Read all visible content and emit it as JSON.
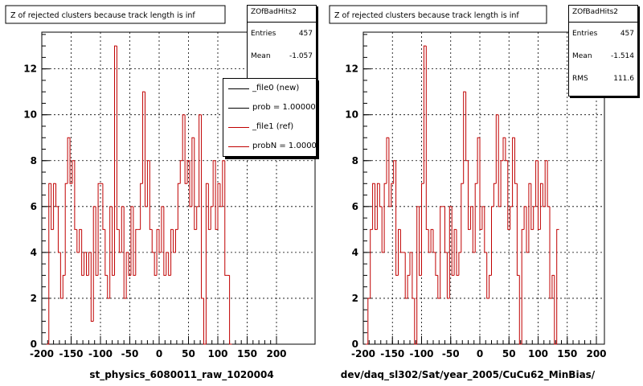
{
  "colors": {
    "hist": "#c00000",
    "axis": "#000000",
    "grid": "#000000",
    "legend_new": "#000000",
    "legend_ref": "#c00000"
  },
  "footer_text": "",
  "chart_data": [
    {
      "type": "histogram",
      "title": "Z of rejected clusters  because track length is inf",
      "xlabel": "st_physics_6080011_raw_1020004",
      "ylabel": "",
      "xlim": [
        -205,
        207
      ],
      "ylim": [
        0,
        13.6
      ],
      "xticks": [
        -200,
        -150,
        -100,
        -50,
        0,
        50,
        100,
        150,
        200
      ],
      "yticks": [
        0,
        2,
        4,
        6,
        8,
        10,
        12
      ],
      "grid": true,
      "bin_width": 4,
      "bin_start": -192,
      "values": [
        0,
        7,
        5,
        7,
        6,
        4,
        2,
        3,
        7,
        9,
        7,
        8,
        5,
        4,
        5,
        3,
        4,
        3,
        4,
        1,
        6,
        3,
        7,
        7,
        5,
        3,
        2,
        6,
        3,
        13,
        5,
        4,
        6,
        2,
        4,
        3,
        6,
        3,
        5,
        5,
        7,
        11,
        6,
        8,
        5,
        4,
        3,
        5,
        4,
        6,
        3,
        4,
        3,
        5,
        4,
        5,
        7,
        8,
        10,
        7,
        8,
        6,
        9,
        5,
        6,
        10,
        2,
        0,
        7,
        5,
        6,
        8,
        5,
        7,
        6,
        8,
        3,
        3,
        0
      ],
      "stats": {
        "name": "ZOfBadHits2",
        "entries_label": "Entries",
        "entries": "457",
        "mean_label": "Mean",
        "mean": "-1.057"
      },
      "legend": {
        "placement": "top-right",
        "entries": [
          {
            "label": "_file0 (new)",
            "color": "#000000"
          },
          {
            "label": "prob = 1.000000",
            "color": "#000000"
          },
          {
            "label": "_file1 (ref)",
            "color": "#c00000"
          },
          {
            "label": "probN = 1.000000",
            "color": "#c00000"
          }
        ]
      }
    },
    {
      "type": "histogram",
      "title": "Z of rejected clusters  because track length is inf",
      "xlabel": "dev/daq_sl302/Sat/year_2005/CuCu62_MinBias/",
      "ylabel": "",
      "xlim": [
        -205,
        207
      ],
      "ylim": [
        0,
        13.6
      ],
      "xticks": [
        -200,
        -150,
        -100,
        -50,
        0,
        50,
        100,
        150,
        200
      ],
      "yticks": [
        0,
        2,
        4,
        6,
        8,
        10,
        12
      ],
      "grid": true,
      "bin_width": 4,
      "bin_start": -196,
      "values": [
        0,
        2,
        5,
        7,
        5,
        7,
        6,
        4,
        7,
        9,
        6,
        7,
        8,
        3,
        5,
        4,
        4,
        2,
        3,
        4,
        2,
        0,
        6,
        3,
        7,
        13,
        5,
        4,
        5,
        4,
        3,
        2,
        6,
        6,
        4,
        2,
        6,
        3,
        5,
        3,
        4,
        7,
        11,
        8,
        5,
        6,
        4,
        7,
        9,
        5,
        6,
        4,
        2,
        3,
        6,
        7,
        10,
        6,
        8,
        9,
        8,
        5,
        6,
        9,
        7,
        3,
        0,
        5,
        6,
        4,
        7,
        5,
        6,
        8,
        5,
        7,
        6,
        8,
        6,
        2,
        3,
        0,
        5
      ],
      "stats": {
        "name": "ZOfBadHits2",
        "entries_label": "Entries",
        "entries": "457",
        "mean_label": "Mean",
        "mean": "-1.514",
        "rms_label": "RMS",
        "rms": "111.6"
      }
    }
  ]
}
